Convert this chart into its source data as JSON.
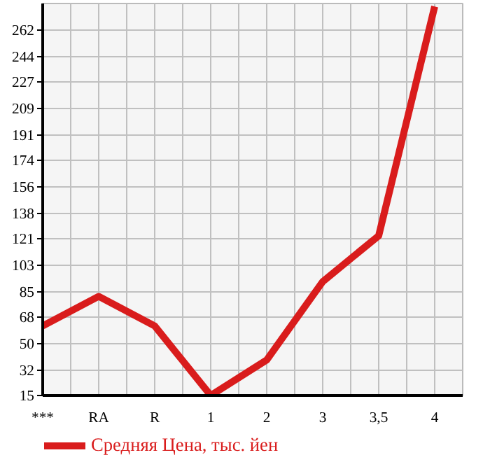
{
  "chart_data": {
    "type": "line",
    "categories": [
      "***",
      "RA",
      "R",
      "1",
      "2",
      "3",
      "3,5",
      "4"
    ],
    "series": [
      {
        "name": "Средняя Цена, тыс. йен",
        "color": "#d91c1c",
        "values": [
          62,
          82,
          62,
          15,
          39,
          92,
          123,
          278
        ]
      }
    ],
    "ylim": [
      15,
      280
    ],
    "yticks": [
      15,
      32,
      50,
      68,
      85,
      103,
      121,
      138,
      156,
      174,
      191,
      209,
      227,
      244,
      262
    ],
    "grid": true,
    "legend": "bottom",
    "marker": "none",
    "line_style": "solid"
  }
}
